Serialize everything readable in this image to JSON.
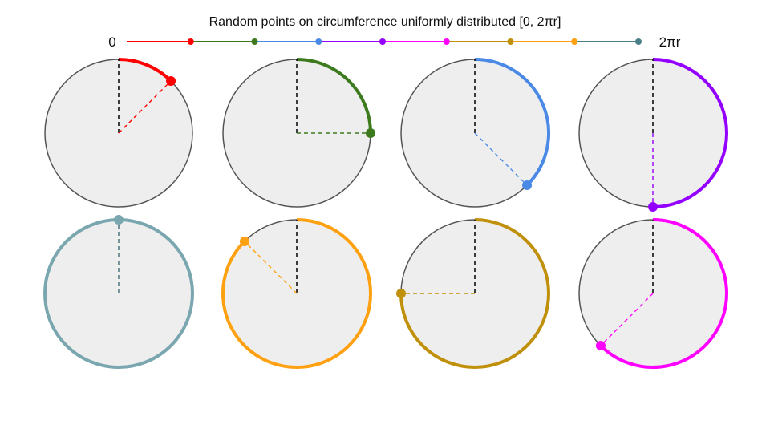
{
  "title": "Random points on circumference uniformly distributed [0, 2πr]",
  "scale": {
    "start_label": "0",
    "end_label": "2πr",
    "segment_colors": [
      "#ff0000",
      "#3d7a1e",
      "#4b89e6",
      "#9400ff",
      "#ff00ff",
      "#c0900a",
      "#ffa010",
      "#4a7f8a"
    ],
    "tick_marker_colors": [
      "#ff0000",
      "#3d7a1e",
      "#4b89e6",
      "#9400ff",
      "#ff00ff",
      "#c0900a",
      "#ffa010",
      "#4a7f8a"
    ]
  },
  "circle_style": {
    "fill": "#eeeeee",
    "outline": "#555555",
    "radius_line_color": "#111111"
  },
  "circles": [
    {
      "fraction": 0.125,
      "color": "#ff0000"
    },
    {
      "fraction": 0.25,
      "color": "#3d7a1e"
    },
    {
      "fraction": 0.375,
      "color": "#4b89e6"
    },
    {
      "fraction": 0.5,
      "color": "#9400ff"
    },
    {
      "fraction": 1.0,
      "color": "#7aa6b0"
    },
    {
      "fraction": 0.875,
      "color": "#ffa010"
    },
    {
      "fraction": 0.75,
      "color": "#c0900a"
    },
    {
      "fraction": 0.625,
      "color": "#ff00ff"
    }
  ]
}
